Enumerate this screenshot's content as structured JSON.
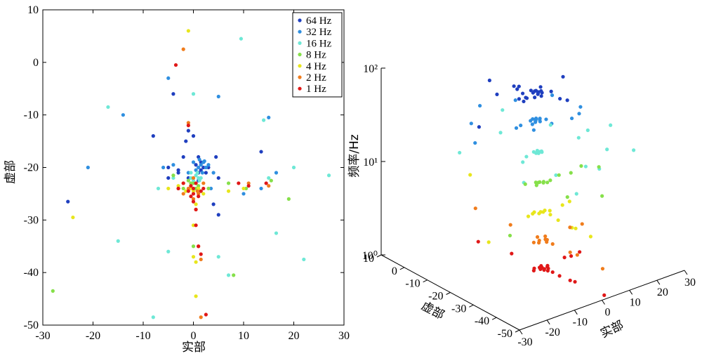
{
  "colors": {
    "64 Hz": "#1f3fbf",
    "32 Hz": "#2f8fe0",
    "16 Hz": "#6ee8d6",
    "8 Hz": "#86e04a",
    "4 Hz": "#e8e61c",
    "2 Hz": "#f07c1c",
    "1 Hz": "#e01818"
  },
  "chart_data": [
    {
      "type": "scatter",
      "xlabel": "实部",
      "ylabel": "虚部",
      "xlim": [
        -30,
        30
      ],
      "ylim": [
        -50,
        10
      ],
      "xticks": [
        -30,
        -20,
        -10,
        0,
        10,
        20,
        30
      ],
      "yticks": [
        10,
        0,
        -10,
        -20,
        -30,
        -40,
        -50
      ],
      "legend_position": "top-right",
      "series": [
        {
          "name": "64 Hz",
          "points": [
            [
              -25,
              -26.5
            ],
            [
              -4,
              -6
            ],
            [
              -5,
              -20
            ],
            [
              -3,
              -21
            ],
            [
              -2,
              -18
            ],
            [
              -1.5,
              -15
            ],
            [
              -1,
              -13
            ],
            [
              0,
              -14
            ],
            [
              -8,
              -14
            ],
            [
              1,
              -18
            ],
            [
              1.5,
              -19
            ],
            [
              2,
              -20
            ],
            [
              2.5,
              -21
            ],
            [
              1,
              -21
            ],
            [
              0.5,
              -19.5
            ],
            [
              2,
              -19
            ],
            [
              3,
              -20
            ],
            [
              4.5,
              -18
            ],
            [
              5,
              -22
            ],
            [
              1,
              -22.5
            ],
            [
              -1,
              -22
            ],
            [
              13.5,
              -17
            ],
            [
              5,
              -29
            ],
            [
              4,
              -27
            ],
            [
              -5,
              -22
            ],
            [
              -3,
              -20.5
            ],
            [
              1.5,
              -20.5
            ]
          ]
        },
        {
          "name": "32 Hz",
          "points": [
            [
              -21,
              -20
            ],
            [
              -14,
              -10
            ],
            [
              -5,
              -3
            ],
            [
              -6,
              -20
            ],
            [
              -4,
              -19.5
            ],
            [
              -3,
              -24
            ],
            [
              1,
              -20
            ],
            [
              1.5,
              -19.5
            ],
            [
              2,
              -19
            ],
            [
              0.5,
              -20.5
            ],
            [
              1.2,
              -18.5
            ],
            [
              2.5,
              -20
            ],
            [
              3,
              -19.5
            ],
            [
              5,
              -6.5
            ],
            [
              4,
              -21
            ],
            [
              3.5,
              -24
            ],
            [
              15,
              -10.5
            ],
            [
              10,
              -25
            ],
            [
              13.5,
              -24
            ],
            [
              16.5,
              -21
            ],
            [
              -1,
              -21
            ],
            [
              0,
              -19
            ],
            [
              1.8,
              -21
            ],
            [
              2.2,
              -18.8
            ]
          ]
        },
        {
          "name": "16 Hz",
          "points": [
            [
              -17,
              -8.5
            ],
            [
              9.5,
              4.5
            ],
            [
              0,
              -6
            ],
            [
              -8,
              -48.5
            ],
            [
              -5,
              -36
            ],
            [
              -7,
              -24
            ],
            [
              -4,
              -22
            ],
            [
              0.5,
              -21.5
            ],
            [
              1,
              -22
            ],
            [
              0,
              -22.5
            ],
            [
              -0.5,
              -21
            ],
            [
              1.5,
              -22
            ],
            [
              5,
              -37
            ],
            [
              7,
              -40.5
            ],
            [
              14,
              -11
            ],
            [
              15,
              -22
            ],
            [
              20,
              -20
            ],
            [
              27,
              -21.5
            ],
            [
              16.5,
              -32.5
            ],
            [
              22,
              -37.5
            ],
            [
              -15,
              -34
            ],
            [
              -0.5,
              -22
            ],
            [
              0.8,
              -21
            ],
            [
              1.2,
              -22.5
            ]
          ]
        },
        {
          "name": "8 Hz",
          "points": [
            [
              -28,
              -43.5
            ],
            [
              -4,
              -21.5
            ],
            [
              -2,
              -24
            ],
            [
              0,
              -23
            ],
            [
              1,
              -23.5
            ],
            [
              0.5,
              -24
            ],
            [
              -0.5,
              -23
            ],
            [
              3,
              -24
            ],
            [
              7,
              -23
            ],
            [
              10.5,
              -24
            ],
            [
              15.5,
              -22.5
            ],
            [
              19,
              -26
            ],
            [
              0,
              -35
            ],
            [
              8,
              -40.5
            ],
            [
              -1,
              -22.5
            ],
            [
              1.5,
              -24.5
            ]
          ]
        },
        {
          "name": "4 Hz",
          "points": [
            [
              -1,
              6
            ],
            [
              -24,
              -29.5
            ],
            [
              -5,
              -24
            ],
            [
              -2,
              -23
            ],
            [
              0,
              -24.5
            ],
            [
              1,
              -24
            ],
            [
              -0.5,
              -24
            ],
            [
              2,
              -25
            ],
            [
              0.5,
              -27
            ],
            [
              0,
              -31
            ],
            [
              0,
              -37
            ],
            [
              0.5,
              -38
            ],
            [
              0.5,
              -44.5
            ],
            [
              7,
              -24.5
            ],
            [
              10,
              -24
            ],
            [
              -3,
              -23.5
            ],
            [
              -1.5,
              -24.5
            ]
          ]
        },
        {
          "name": "2 Hz",
          "points": [
            [
              -2,
              2.5
            ],
            [
              -1,
              -11.5
            ],
            [
              0,
              -22
            ],
            [
              -1,
              -24
            ],
            [
              1,
              -25
            ],
            [
              -3,
              -24
            ],
            [
              2,
              -23
            ],
            [
              0,
              -26
            ],
            [
              0.5,
              -28
            ],
            [
              1,
              -35
            ],
            [
              1.5,
              -37.5
            ],
            [
              1.5,
              -48.5
            ],
            [
              11,
              -23
            ],
            [
              15,
              -23.5
            ],
            [
              -2,
              -25
            ],
            [
              0.8,
              -24.5
            ]
          ]
        },
        {
          "name": "1 Hz",
          "points": [
            [
              -3.5,
              -0.5
            ],
            [
              -1,
              -12
            ],
            [
              -0.5,
              -23.5
            ],
            [
              0,
              -24
            ],
            [
              -1,
              -24.5
            ],
            [
              0.5,
              -23
            ],
            [
              -2,
              -23
            ],
            [
              1.5,
              -24.5
            ],
            [
              0,
              -25
            ],
            [
              -0.5,
              -25.5
            ],
            [
              1,
              -25.5
            ],
            [
              0,
              -26.5
            ],
            [
              0.5,
              -28
            ],
            [
              0.5,
              -31
            ],
            [
              1,
              -35
            ],
            [
              1.5,
              -36.5
            ],
            [
              2.5,
              -48
            ],
            [
              9,
              -23
            ],
            [
              11,
              -23.5
            ],
            [
              14.5,
              -23
            ],
            [
              -3,
              -24
            ],
            [
              2,
              -24
            ]
          ]
        }
      ]
    },
    {
      "type": "scatter",
      "projection": "3d",
      "xlabel": "实部",
      "ylabel": "虚部",
      "zlabel": "频率/Hz",
      "xlim": [
        -30,
        30
      ],
      "ylim": [
        -50,
        10
      ],
      "zlim": [
        1,
        100
      ],
      "zscale": "log",
      "xticks": [
        -30,
        -20,
        -10,
        0,
        10,
        20,
        30
      ],
      "yticks": [
        10,
        0,
        -10,
        -20,
        -30,
        -40,
        -50
      ],
      "zticks": [
        "10⁰",
        "10¹",
        "10²"
      ],
      "grid": false
    }
  ]
}
